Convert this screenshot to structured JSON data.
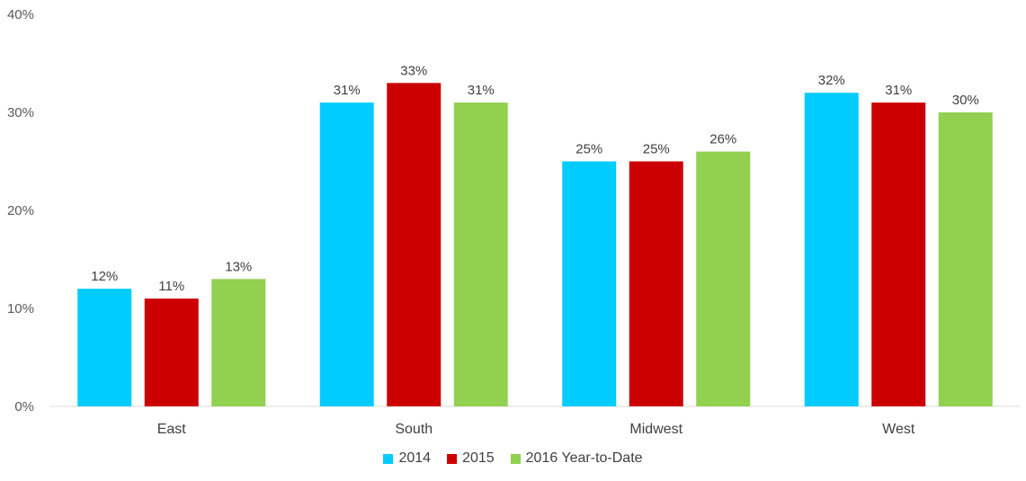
{
  "chart_data": {
    "type": "bar",
    "categories": [
      "East",
      "South",
      "Midwest",
      "West"
    ],
    "series": [
      {
        "name": "2014",
        "color": "#00CCFF",
        "values": [
          12,
          31,
          25,
          32
        ],
        "labels": [
          "12%",
          "31%",
          "25%",
          "32%"
        ]
      },
      {
        "name": "2015",
        "color": "#CC0000",
        "values": [
          11,
          33,
          25,
          31
        ],
        "labels": [
          "11%",
          "33%",
          "25%",
          "31%"
        ]
      },
      {
        "name": "2016 Year-to-Date",
        "color": "#92D050",
        "values": [
          13,
          31,
          26,
          30
        ],
        "labels": [
          "13%",
          "31%",
          "26%",
          "30%"
        ]
      }
    ],
    "y_ticks": [
      "0%",
      "10%",
      "20%",
      "30%",
      "40%"
    ],
    "ylim": [
      0,
      40
    ],
    "grid": false,
    "legend_position": "bottom"
  }
}
